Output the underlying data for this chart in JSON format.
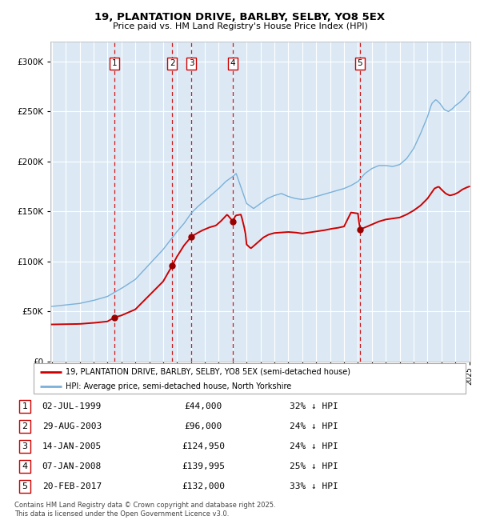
{
  "title_line1": "19, PLANTATION DRIVE, BARLBY, SELBY, YO8 5EX",
  "title_line2": "Price paid vs. HM Land Registry's House Price Index (HPI)",
  "background_color": "#ffffff",
  "plot_bg_color": "#dce9f5",
  "grid_color": "#ffffff",
  "hpi_color": "#7ab0d8",
  "price_color": "#cc0000",
  "marker_color": "#990000",
  "vline_color": "#cc0000",
  "legend_entries": [
    "19, PLANTATION DRIVE, BARLBY, SELBY, YO8 5EX (semi-detached house)",
    "HPI: Average price, semi-detached house, North Yorkshire"
  ],
  "table_data": [
    [
      "1",
      "02-JUL-1999",
      "£44,000",
      "32% ↓ HPI"
    ],
    [
      "2",
      "29-AUG-2003",
      "£96,000",
      "24% ↓ HPI"
    ],
    [
      "3",
      "14-JAN-2005",
      "£124,950",
      "24% ↓ HPI"
    ],
    [
      "4",
      "07-JAN-2008",
      "£139,995",
      "25% ↓ HPI"
    ],
    [
      "5",
      "20-FEB-2017",
      "£132,000",
      "33% ↓ HPI"
    ]
  ],
  "footnote": "Contains HM Land Registry data © Crown copyright and database right 2025.\nThis data is licensed under the Open Government Licence v3.0.",
  "ylim": [
    0,
    320000
  ],
  "yticks": [
    0,
    50000,
    100000,
    150000,
    200000,
    250000,
    300000
  ],
  "xstart_year": 1995,
  "xend_year": 2025,
  "sale_dates_float": [
    1999.503,
    2003.66,
    2005.036,
    2008.019,
    2017.136
  ],
  "sale_prices": [
    44000,
    96000,
    124950,
    139995,
    132000
  ],
  "sale_labels": [
    "1",
    "2",
    "3",
    "4",
    "5"
  ]
}
